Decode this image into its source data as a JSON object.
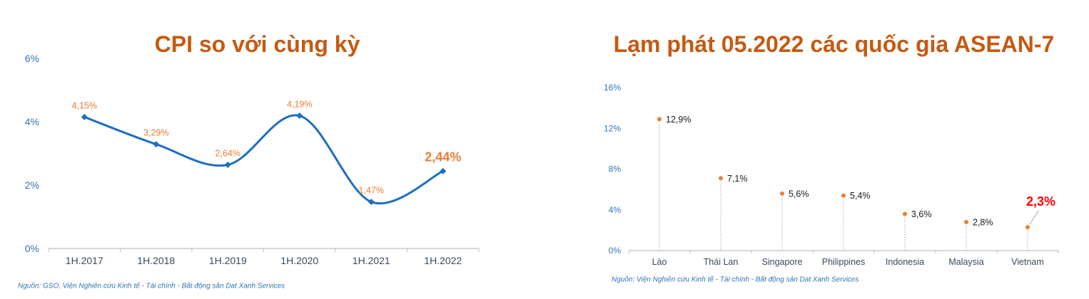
{
  "chart_data": [
    {
      "type": "line",
      "title": "CPI so với cùng kỳ",
      "categories": [
        "1H.2017",
        "1H.2018",
        "1H.2019",
        "1H.2020",
        "1H.2021",
        "1H.2022"
      ],
      "values": [
        4.15,
        3.29,
        2.64,
        4.19,
        1.47,
        2.44
      ],
      "data_labels": [
        "4,15%",
        "3,29%",
        "2,64%",
        "4,19%",
        "1,47%",
        "2,44%"
      ],
      "label_emphasis": [
        false,
        false,
        false,
        false,
        false,
        true
      ],
      "ylim": [
        0,
        6
      ],
      "yticks": [
        0,
        2,
        4,
        6
      ],
      "ytick_labels": [
        "0%",
        "2%",
        "4%",
        "6%"
      ],
      "smooth": true,
      "grid": false,
      "source": "Nguồn: GSO, Viện Nghiên cứu Kinh tế - Tài chính - Bất động sản Dat Xanh Services",
      "colors": {
        "title": "#C55A11",
        "line": "#1F6FBF",
        "marker": "#1F6FBF",
        "data_label": "#ED7D31",
        "emphasis_label": "#ED7D31",
        "axis": "#BFBFBF",
        "axis_label": "#2E75B6",
        "category_label": "#3B4A5E",
        "source": "#2E75B6"
      }
    },
    {
      "type": "scatter",
      "title": "Lạm phát 05.2022 các quốc gia ASEAN-7",
      "categories": [
        "Lào",
        "Thái Lan",
        "Singapore",
        "Philippines",
        "Indonesia",
        "Malaysia",
        "Vietnam"
      ],
      "values": [
        12.9,
        7.1,
        5.6,
        5.4,
        3.6,
        2.8,
        2.3
      ],
      "data_labels": [
        "12,9%",
        "7,1%",
        "5,6%",
        "5,4%",
        "3,6%",
        "2,8%",
        "2,3%"
      ],
      "label_emphasis": [
        false,
        false,
        false,
        false,
        false,
        false,
        true
      ],
      "ylim": [
        0,
        16
      ],
      "yticks": [
        0,
        4,
        8,
        12,
        16
      ],
      "ytick_labels": [
        "0%",
        "4%",
        "8%",
        "12%",
        "16%"
      ],
      "drop_lines": true,
      "grid": false,
      "source": "Nguồn: Viện Nghiên cứu Kinh tế - Tài chính - Bất động sản Dat Xanh Services",
      "colors": {
        "title": "#C55A11",
        "dot": "#ED7D31",
        "drop_line": "#A6A6A6",
        "data_label": "#1A1A1A",
        "emphasis_label": "#FF0000",
        "leader_line": "#A6A6A6",
        "axis": "#BFBFBF",
        "axis_label": "#2E75B6",
        "category_label": "#3B4A5E",
        "source": "#2E75B6"
      }
    }
  ]
}
